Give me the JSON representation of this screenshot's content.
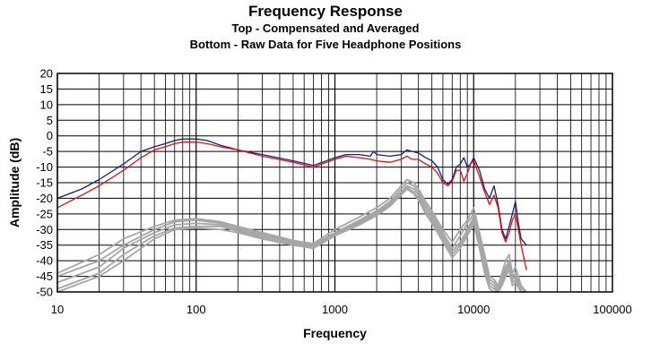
{
  "chart_data": {
    "type": "line",
    "title": "Frequency Response",
    "subtitle_lines": [
      "Top -  Compensated and Averaged",
      "Bottom - Raw Data for Five Headphone Positions"
    ],
    "xlabel": "Frequency",
    "ylabel": "Amplitude (dB)",
    "x_scale": "log",
    "xlim": [
      10,
      100000
    ],
    "ylim": [
      -50,
      20
    ],
    "x_tick_labels": [
      "10",
      "100",
      "1000",
      "10000",
      "100000"
    ],
    "x_tick_values": [
      10,
      100,
      1000,
      10000,
      100000
    ],
    "y_tick_values": [
      20,
      15,
      10,
      5,
      0,
      -5,
      -10,
      -15,
      -20,
      -25,
      -30,
      -35,
      -40,
      -45,
      -50
    ],
    "grid": true,
    "legend": "none",
    "series": [
      {
        "color": "#1c1c7a",
        "group": "compensated",
        "points": [
          [
            10,
            -20
          ],
          [
            15,
            -17
          ],
          [
            20,
            -14
          ],
          [
            30,
            -9
          ],
          [
            40,
            -5
          ],
          [
            50,
            -3.5
          ],
          [
            60,
            -2.5
          ],
          [
            70,
            -1.5
          ],
          [
            80,
            -1
          ],
          [
            100,
            -1
          ],
          [
            120,
            -1.5
          ],
          [
            150,
            -3
          ],
          [
            200,
            -4.5
          ],
          [
            300,
            -6
          ],
          [
            500,
            -8
          ],
          [
            700,
            -9.5
          ],
          [
            1000,
            -7
          ],
          [
            1200,
            -6
          ],
          [
            1500,
            -6
          ],
          [
            1800,
            -6.5
          ],
          [
            1900,
            -5
          ],
          [
            2000,
            -6
          ],
          [
            2500,
            -6.5
          ],
          [
            3000,
            -6
          ],
          [
            3300,
            -4.5
          ],
          [
            3600,
            -5
          ],
          [
            4000,
            -5.5
          ],
          [
            4500,
            -7
          ],
          [
            5000,
            -8
          ],
          [
            5500,
            -10
          ],
          [
            6000,
            -14
          ],
          [
            6500,
            -15.5
          ],
          [
            7000,
            -14
          ],
          [
            7500,
            -10
          ],
          [
            8000,
            -9
          ],
          [
            8500,
            -7
          ],
          [
            9000,
            -10
          ],
          [
            9500,
            -9
          ],
          [
            10000,
            -7
          ],
          [
            11000,
            -11
          ],
          [
            12000,
            -17
          ],
          [
            13000,
            -20
          ],
          [
            14000,
            -16
          ],
          [
            15000,
            -22
          ],
          [
            16000,
            -30
          ],
          [
            17000,
            -33
          ],
          [
            18000,
            -29
          ],
          [
            19000,
            -25
          ],
          [
            20000,
            -21
          ],
          [
            21000,
            -28
          ],
          [
            22000,
            -33
          ],
          [
            24000,
            -35
          ]
        ]
      },
      {
        "color": "#e01010",
        "group": "compensated",
        "points": [
          [
            10,
            -23
          ],
          [
            15,
            -19
          ],
          [
            20,
            -16
          ],
          [
            30,
            -11
          ],
          [
            40,
            -7
          ],
          [
            50,
            -4.5
          ],
          [
            60,
            -3.5
          ],
          [
            70,
            -2.5
          ],
          [
            80,
            -2
          ],
          [
            100,
            -2
          ],
          [
            120,
            -2.5
          ],
          [
            150,
            -3.5
          ],
          [
            200,
            -4.5
          ],
          [
            300,
            -6.5
          ],
          [
            500,
            -8.5
          ],
          [
            700,
            -10
          ],
          [
            1000,
            -7.5
          ],
          [
            1200,
            -6.5
          ],
          [
            1500,
            -7
          ],
          [
            1800,
            -7.5
          ],
          [
            2000,
            -8
          ],
          [
            2500,
            -8.5
          ],
          [
            3000,
            -7.5
          ],
          [
            3300,
            -6.5
          ],
          [
            3600,
            -7.5
          ],
          [
            4000,
            -7.5
          ],
          [
            4500,
            -9
          ],
          [
            5000,
            -10
          ],
          [
            5500,
            -12
          ],
          [
            6000,
            -15
          ],
          [
            6500,
            -16
          ],
          [
            7000,
            -14.5
          ],
          [
            7500,
            -11
          ],
          [
            8000,
            -11
          ],
          [
            8500,
            -14.5
          ],
          [
            9000,
            -12
          ],
          [
            9500,
            -9
          ],
          [
            10000,
            -8
          ],
          [
            11000,
            -13
          ],
          [
            12000,
            -18
          ],
          [
            13000,
            -22
          ],
          [
            14000,
            -19
          ],
          [
            15000,
            -23
          ],
          [
            16000,
            -31
          ],
          [
            17000,
            -34
          ],
          [
            18000,
            -31
          ],
          [
            19000,
            -27
          ],
          [
            20000,
            -25
          ],
          [
            21000,
            -30
          ],
          [
            22000,
            -35
          ],
          [
            24000,
            -43
          ]
        ]
      },
      {
        "color": "#a6a6a6",
        "group": "raw",
        "points": [
          [
            10,
            -44
          ],
          [
            20,
            -38
          ],
          [
            30,
            -33
          ],
          [
            50,
            -29
          ],
          [
            70,
            -27
          ],
          [
            100,
            -26.5
          ],
          [
            150,
            -27.5
          ],
          [
            200,
            -29
          ],
          [
            300,
            -31
          ],
          [
            500,
            -33.5
          ],
          [
            700,
            -34.5
          ],
          [
            1000,
            -30
          ],
          [
            1500,
            -26
          ],
          [
            2000,
            -23
          ],
          [
            2500,
            -20
          ],
          [
            3000,
            -16
          ],
          [
            3300,
            -14
          ],
          [
            3700,
            -15
          ],
          [
            4000,
            -17
          ],
          [
            4500,
            -21
          ],
          [
            5000,
            -24
          ],
          [
            6000,
            -30
          ],
          [
            7000,
            -34
          ],
          [
            8000,
            -30
          ],
          [
            9000,
            -27
          ],
          [
            10000,
            -23
          ],
          [
            11000,
            -31
          ],
          [
            12000,
            -38
          ],
          [
            13000,
            -45
          ],
          [
            14000,
            -46
          ],
          [
            15000,
            -48
          ],
          [
            16000,
            -44
          ],
          [
            17000,
            -40
          ],
          [
            18000,
            -38
          ],
          [
            19000,
            -44
          ],
          [
            20000,
            -42
          ],
          [
            22000,
            -48
          ],
          [
            24000,
            -50
          ]
        ]
      },
      {
        "color": "#a6a6a6",
        "group": "raw",
        "points": [
          [
            10,
            -45
          ],
          [
            20,
            -40
          ],
          [
            30,
            -35
          ],
          [
            50,
            -30
          ],
          [
            70,
            -27.5
          ],
          [
            100,
            -27
          ],
          [
            150,
            -28
          ],
          [
            200,
            -29.5
          ],
          [
            300,
            -31.5
          ],
          [
            500,
            -34
          ],
          [
            700,
            -35
          ],
          [
            1000,
            -31
          ],
          [
            1500,
            -27
          ],
          [
            2000,
            -24
          ],
          [
            2500,
            -21
          ],
          [
            3000,
            -17
          ],
          [
            3300,
            -15
          ],
          [
            3700,
            -16
          ],
          [
            4000,
            -18
          ],
          [
            4500,
            -22
          ],
          [
            5000,
            -25
          ],
          [
            6000,
            -31
          ],
          [
            7000,
            -36
          ],
          [
            8000,
            -32
          ],
          [
            9000,
            -28
          ],
          [
            10000,
            -25
          ],
          [
            11000,
            -33
          ],
          [
            12000,
            -40
          ],
          [
            13000,
            -46
          ],
          [
            14000,
            -47
          ],
          [
            15000,
            -49
          ],
          [
            16000,
            -45
          ],
          [
            17000,
            -42
          ],
          [
            18000,
            -40
          ],
          [
            19000,
            -45
          ],
          [
            20000,
            -44
          ],
          [
            22000,
            -49
          ],
          [
            24000,
            -50
          ]
        ]
      },
      {
        "color": "#a6a6a6",
        "group": "raw",
        "points": [
          [
            10,
            -47
          ],
          [
            20,
            -42
          ],
          [
            30,
            -36
          ],
          [
            50,
            -31
          ],
          [
            70,
            -28.5
          ],
          [
            100,
            -28
          ],
          [
            150,
            -28.5
          ],
          [
            200,
            -30
          ],
          [
            300,
            -32
          ],
          [
            500,
            -34
          ],
          [
            700,
            -35
          ],
          [
            1000,
            -31
          ],
          [
            1500,
            -27.5
          ],
          [
            2000,
            -24.5
          ],
          [
            2500,
            -21.5
          ],
          [
            3000,
            -18
          ],
          [
            3300,
            -16
          ],
          [
            3700,
            -17
          ],
          [
            4000,
            -19
          ],
          [
            4500,
            -23
          ],
          [
            5000,
            -26
          ],
          [
            6000,
            -32
          ],
          [
            7000,
            -37
          ],
          [
            8000,
            -34
          ],
          [
            9000,
            -30
          ],
          [
            10000,
            -26
          ],
          [
            11000,
            -34
          ],
          [
            12000,
            -42
          ],
          [
            13000,
            -47
          ],
          [
            14000,
            -48
          ],
          [
            15000,
            -50
          ],
          [
            16000,
            -46
          ],
          [
            17000,
            -43
          ],
          [
            18000,
            -41
          ],
          [
            19000,
            -46
          ],
          [
            20000,
            -45
          ],
          [
            22000,
            -50
          ],
          [
            24000,
            -50
          ]
        ]
      },
      {
        "color": "#a6a6a6",
        "group": "raw",
        "points": [
          [
            10,
            -49
          ],
          [
            20,
            -44
          ],
          [
            30,
            -38
          ],
          [
            50,
            -32
          ],
          [
            70,
            -29.5
          ],
          [
            100,
            -29
          ],
          [
            150,
            -29
          ],
          [
            200,
            -30.5
          ],
          [
            300,
            -32.5
          ],
          [
            500,
            -34.5
          ],
          [
            700,
            -35.5
          ],
          [
            1000,
            -31.5
          ],
          [
            1500,
            -28
          ],
          [
            2000,
            -25
          ],
          [
            2500,
            -22
          ],
          [
            3000,
            -18.5
          ],
          [
            3300,
            -16.5
          ],
          [
            3700,
            -18
          ],
          [
            4000,
            -20
          ],
          [
            4500,
            -24
          ],
          [
            5000,
            -27
          ],
          [
            6000,
            -33
          ],
          [
            7000,
            -38
          ],
          [
            8000,
            -35
          ],
          [
            9000,
            -31
          ],
          [
            10000,
            -27
          ],
          [
            11000,
            -35
          ],
          [
            12000,
            -43
          ],
          [
            13000,
            -48
          ],
          [
            14000,
            -49
          ],
          [
            15000,
            -50
          ],
          [
            16000,
            -47
          ],
          [
            17000,
            -44
          ],
          [
            18000,
            -42
          ],
          [
            19000,
            -47
          ],
          [
            20000,
            -46
          ],
          [
            22000,
            -50
          ],
          [
            24000,
            -50
          ]
        ]
      },
      {
        "color": "#a6a6a6",
        "group": "raw",
        "points": [
          [
            10,
            -50
          ],
          [
            20,
            -45
          ],
          [
            30,
            -40
          ],
          [
            50,
            -33
          ],
          [
            70,
            -30
          ],
          [
            100,
            -29.5
          ],
          [
            150,
            -30
          ],
          [
            200,
            -31
          ],
          [
            300,
            -33
          ],
          [
            500,
            -35
          ],
          [
            700,
            -36
          ],
          [
            1000,
            -32
          ],
          [
            1500,
            -28.5
          ],
          [
            2000,
            -25.5
          ],
          [
            2500,
            -22.5
          ],
          [
            3000,
            -19
          ],
          [
            3300,
            -17
          ],
          [
            3700,
            -18.5
          ],
          [
            4000,
            -20.5
          ],
          [
            4500,
            -25
          ],
          [
            5000,
            -28
          ],
          [
            6000,
            -34
          ],
          [
            7000,
            -39
          ],
          [
            8000,
            -36
          ],
          [
            9000,
            -32
          ],
          [
            10000,
            -28
          ],
          [
            11000,
            -36
          ],
          [
            12000,
            -44
          ],
          [
            13000,
            -49
          ],
          [
            14000,
            -50
          ],
          [
            15000,
            -50
          ],
          [
            16000,
            -48
          ],
          [
            17000,
            -45
          ],
          [
            18000,
            -43
          ],
          [
            19000,
            -48
          ],
          [
            20000,
            -47
          ],
          [
            22000,
            -50
          ],
          [
            24000,
            -50
          ]
        ]
      }
    ]
  }
}
